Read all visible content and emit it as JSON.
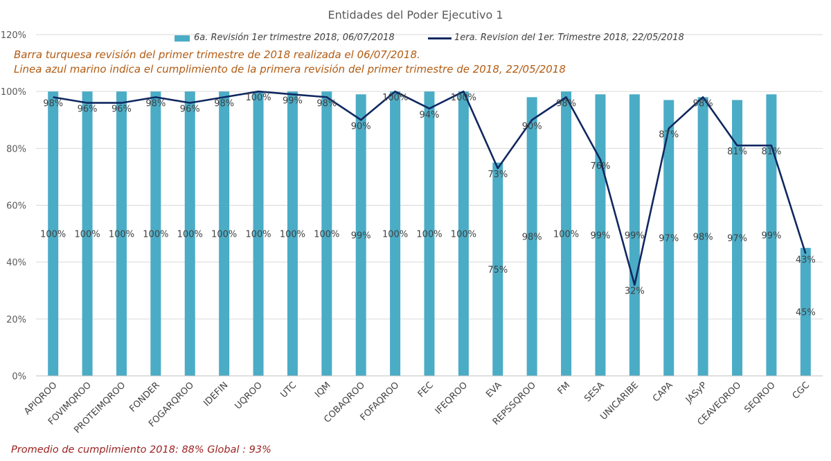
{
  "chart_data": {
    "type": "bar",
    "title": "Entidades del Poder Ejecutivo 1",
    "categories": [
      "APIQROO",
      "FOVIMQROO",
      "PROTEIMQROO",
      "FONDER",
      "FOGARQROO",
      "IDEFIN",
      "UQROO",
      "UTC",
      "IQM",
      "COBAQROO",
      "FOFAQROO",
      "FEC",
      "IFEQROO",
      "EVA",
      "REPSSQROO",
      "FM",
      "SESA",
      "UNICARIBE",
      "CAPA",
      "JASyP",
      "CEAVEQROO",
      "SEQROO",
      "CGC"
    ],
    "series": [
      {
        "name": "6a. Revisión 1er trimestre 2018, 06/07/2018",
        "kind": "bar",
        "color": "#4bacc6",
        "values": [
          100,
          100,
          100,
          100,
          100,
          100,
          100,
          100,
          100,
          99,
          100,
          100,
          100,
          75,
          98,
          100,
          99,
          99,
          97,
          98,
          97,
          99,
          45
        ],
        "labels": [
          "100%",
          "100%",
          "100%",
          "100%",
          "100%",
          "100%",
          "100%",
          "100%",
          "100%",
          "99%",
          "100%",
          "100%",
          "100%",
          "75%",
          "98%",
          "100%",
          "99%",
          "99%",
          "97%",
          "98%",
          "97%",
          "99%",
          "45%"
        ]
      },
      {
        "name": "1era. Revision del 1er. Trimestre 2018, 22/05/2018",
        "kind": "line",
        "color": "#102860",
        "values": [
          98,
          96,
          96,
          98,
          96,
          98,
          100,
          99,
          98,
          90,
          100,
          94,
          100,
          73,
          90,
          98,
          76,
          32,
          87,
          98,
          81,
          81,
          43
        ],
        "labels": [
          "98%",
          "96%",
          "96%",
          "98%",
          "96%",
          "98%",
          "100%",
          "99%",
          "98%",
          "90%",
          "100%",
          "94%",
          "100%",
          "73%",
          "90%",
          "98%",
          "76%",
          "32%",
          "87%",
          "98%",
          "81%",
          "81%",
          "43%"
        ]
      }
    ],
    "ylim": [
      0,
      120
    ],
    "yticks": [
      "0%",
      "20%",
      "40%",
      "60%",
      "80%",
      "100%",
      "120%"
    ],
    "grid": true,
    "legend_position": "top"
  },
  "notes": [
    "Barra turquesa  revisión  del  primer  trimestre  de  2018  realizada  el 06/07/2018.",
    "Linea  azul  marino  indica  el  cumplimiento   de  la primera  revisión  del  primer  trimestre  de  2018,   22/05/2018"
  ],
  "footer": "Promedio  de  cumplimiento  2018: 88%      Global  : 93%"
}
